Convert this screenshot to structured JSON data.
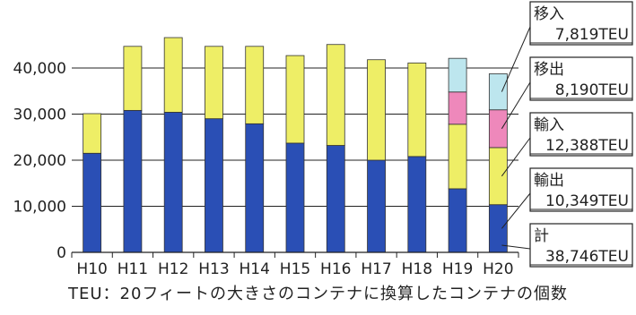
{
  "chart_data": {
    "type": "bar",
    "stacked": true,
    "categories": [
      "H10",
      "H11",
      "H12",
      "H13",
      "H14",
      "H15",
      "H16",
      "H17",
      "H18",
      "H19",
      "H20"
    ],
    "series": [
      {
        "name": "輸出",
        "values": [
          21500,
          30800,
          30400,
          29000,
          27900,
          23700,
          23200,
          20000,
          20800,
          13800,
          10349
        ]
      },
      {
        "name": "輸入",
        "values": [
          8600,
          13900,
          16200,
          15700,
          16800,
          19000,
          21900,
          21800,
          20300,
          14000,
          12388
        ]
      },
      {
        "name": "移出",
        "values": [
          0,
          0,
          0,
          0,
          0,
          0,
          0,
          0,
          0,
          7000,
          8190
        ]
      },
      {
        "name": "移入",
        "values": [
          0,
          0,
          0,
          0,
          0,
          0,
          0,
          0,
          0,
          7300,
          7819
        ]
      }
    ],
    "colors": [
      "#2a4fb5",
      "#eeee66",
      "#ee88bb",
      "#bde6ee"
    ],
    "ylim": [
      0,
      45000
    ],
    "yticks": [
      0,
      10000,
      20000,
      30000,
      40000
    ],
    "ytick_labels": [
      "0",
      "10,000",
      "20,000",
      "30,000",
      "40,000"
    ],
    "gridlines": true,
    "annotations": [
      {
        "series": "移入",
        "label": "移入",
        "value": "7,819TEU"
      },
      {
        "series": "移出",
        "label": "移出",
        "value": "8,190TEU"
      },
      {
        "series": "輸入",
        "label": "輸入",
        "value": "12,388TEU"
      },
      {
        "series": "輸出",
        "label": "輸出",
        "value": "10,349TEU"
      },
      {
        "series": "total",
        "label": "計",
        "value": "38,746TEU"
      }
    ]
  },
  "footnote": "TEU：20フィートの大きさのコンテナに換算したコンテナの個数"
}
